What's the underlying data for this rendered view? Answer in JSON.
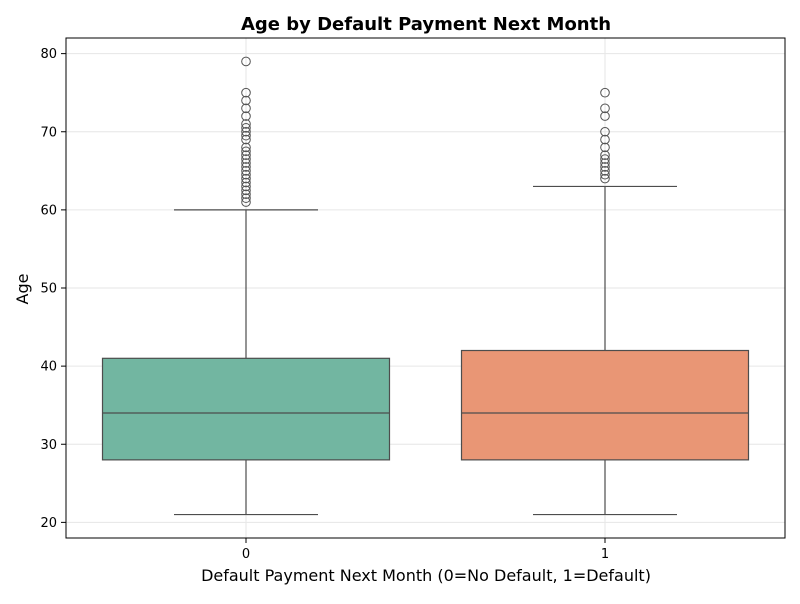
{
  "chart_data": {
    "type": "box",
    "title": "Age by Default Payment Next Month",
    "xlabel": "Default Payment Next Month (0=No Default, 1=Default)",
    "ylabel": "Age",
    "ylim": [
      18,
      82
    ],
    "yticks": [
      20,
      30,
      40,
      50,
      60,
      70,
      80
    ],
    "categories": [
      "0",
      "1"
    ],
    "grid": true,
    "boxes": [
      {
        "category": "0",
        "color": "#72b6a1",
        "whisker_low": 21,
        "q1": 28,
        "median": 34,
        "q3": 41,
        "whisker_high": 60,
        "outliers": [
          61,
          61.5,
          62,
          62.5,
          63,
          63.5,
          64,
          64.5,
          65,
          65.5,
          66,
          66.5,
          67,
          67.5,
          68,
          69,
          69.5,
          70,
          70.5,
          71,
          72,
          73,
          74,
          75,
          79
        ]
      },
      {
        "category": "1",
        "color": "#e99675",
        "whisker_low": 21,
        "q1": 28,
        "median": 34,
        "q3": 42,
        "whisker_high": 63,
        "outliers": [
          64,
          64.5,
          65,
          65.5,
          66,
          66.5,
          67,
          68,
          69,
          70,
          72,
          73,
          75
        ]
      }
    ]
  }
}
